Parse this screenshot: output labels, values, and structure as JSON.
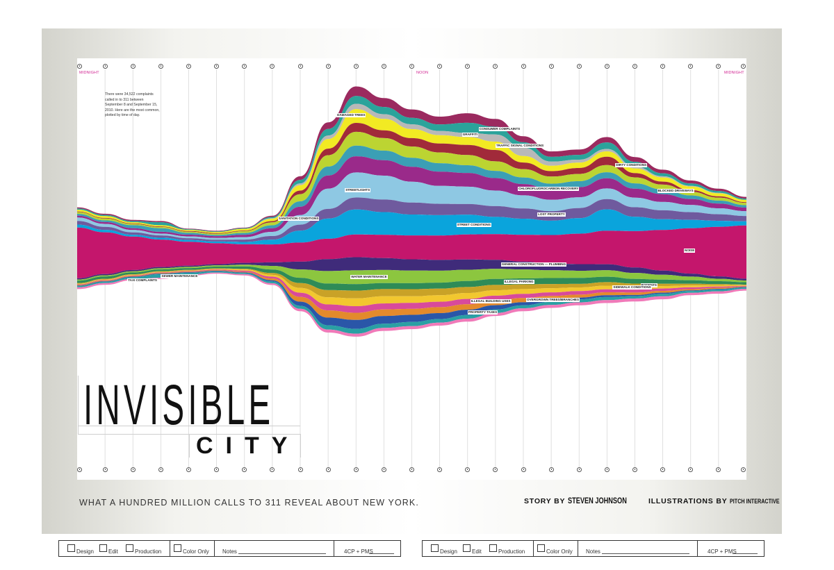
{
  "title": {
    "main": "INVISIBLE",
    "sub": "CITY"
  },
  "tagline": "WHAT A HUNDRED MILLION CALLS TO 311 REVEAL ABOUT NEW YORK.",
  "credits": {
    "story_prefix": "STORY BY",
    "story_name": "STEVEN JOHNSON",
    "illus_prefix": "ILLUSTRATIONS BY",
    "illus_name": "PITCH INTERACTIVE"
  },
  "intro_text": "There were 34,522 complaints called in to 311 between September 8 and September 15, 2010. Here are the most common, plotted by time of day.",
  "time_labels": {
    "start": "MIDNIGHT",
    "noon": "NOON",
    "end": "MIDNIGHT"
  },
  "stamp": {
    "design": "Design",
    "edit": "Edit",
    "production": "Production",
    "color_only": "Color Only",
    "notes": "Notes",
    "color_spec": "4CP + PMS"
  },
  "chart_data": {
    "type": "area",
    "subtype": "streamgraph",
    "x_unit": "hour of day",
    "x": [
      0,
      1,
      2,
      3,
      4,
      5,
      6,
      7,
      8,
      9,
      10,
      11,
      12,
      13,
      14,
      15,
      16,
      17,
      18,
      19,
      20,
      21,
      22,
      23,
      24
    ],
    "series": [
      {
        "name": "DAMAGED TREES",
        "color": "#9b2a5f",
        "values": [
          0.2,
          0.2,
          0.2,
          0.2,
          0.1,
          0.1,
          0.1,
          0.2,
          0.6,
          1.1,
          1.6,
          1.5,
          1.4,
          1.3,
          1.6,
          1.3,
          1.0,
          0.9,
          0.9,
          0.9,
          0.8,
          0.6,
          0.5,
          0.4,
          0.3
        ]
      },
      {
        "name": "CONSUMER COMPLAINTS",
        "color": "#2ba39b",
        "values": [
          0.2,
          0.2,
          0.2,
          0.5,
          0.1,
          0.1,
          0.1,
          0.2,
          0.6,
          1.1,
          1.3,
          1.2,
          1.1,
          1.1,
          1.7,
          1.3,
          0.9,
          0.8,
          0.8,
          1.1,
          0.8,
          0.5,
          0.4,
          0.3,
          0.2
        ]
      },
      {
        "name": "GRAFFITI",
        "color": "#b8b8b8",
        "values": [
          0,
          0,
          0,
          0,
          0,
          0,
          0,
          0.1,
          0.3,
          0.6,
          0.9,
          0.8,
          0.8,
          0.7,
          0.7,
          1.2,
          1.4,
          0.7,
          0.5,
          0.4,
          0.3,
          0.2,
          0.1,
          0.1,
          0
        ]
      },
      {
        "name": "TRAFFIC SIGNAL CONDITIONS",
        "color": "#f2ea23",
        "values": [
          0.3,
          0.3,
          0.2,
          0.2,
          0.2,
          0.2,
          0.3,
          0.4,
          0.9,
          1.6,
          2.3,
          1.9,
          1.5,
          1.4,
          1.3,
          1.4,
          1.1,
          0.9,
          0.9,
          0.9,
          0.8,
          0.7,
          0.6,
          0.5,
          0.4
        ]
      },
      {
        "name": "DIRTY CONDITIONS",
        "color": "#a12a3a",
        "values": [
          0.1,
          0.1,
          0.1,
          0.1,
          0.1,
          0.1,
          0.1,
          0.2,
          0.6,
          1.1,
          1.5,
          1.3,
          1.4,
          1.5,
          1.7,
          1.9,
          1.1,
          0.9,
          1.0,
          1.4,
          0.7,
          0.5,
          0.3,
          0.2,
          0.1
        ]
      },
      {
        "name": "SANITATION CONDITIONS",
        "color": "#bcd432",
        "values": [
          0.3,
          0.3,
          0.2,
          0.2,
          0.2,
          0.2,
          0.3,
          0.5,
          1.2,
          1.9,
          2.3,
          2.1,
          1.9,
          1.8,
          1.7,
          1.6,
          1.4,
          1.2,
          1.2,
          1.2,
          1.0,
          0.8,
          0.6,
          0.5,
          0.4
        ]
      },
      {
        "name": "BLOCKED DRIVEWAYS",
        "color": "#3b9fb5",
        "values": [
          0.3,
          0.3,
          0.5,
          0.6,
          0.3,
          0.2,
          0.3,
          0.5,
          0.9,
          1.5,
          1.8,
          1.6,
          1.5,
          1.4,
          1.3,
          1.2,
          1.1,
          1.0,
          1.0,
          1.0,
          0.9,
          0.8,
          0.6,
          0.5,
          0.4
        ]
      },
      {
        "name": "CHLOROFLUOROCARBON RECOVERY",
        "color": "#9a2a8a",
        "values": [
          0.3,
          0.3,
          0.3,
          0.3,
          0.3,
          0.3,
          0.4,
          0.6,
          1.4,
          2.2,
          2.7,
          2.6,
          2.5,
          2.4,
          2.3,
          2.1,
          1.9,
          1.7,
          1.7,
          1.7,
          1.5,
          1.3,
          1.0,
          0.8,
          0.6
        ]
      },
      {
        "name": "STREETLIGHTS",
        "color": "#8ec8e3",
        "values": [
          0.6,
          0.5,
          0.4,
          0.3,
          0.3,
          0.3,
          0.4,
          0.7,
          1.6,
          3.4,
          4.2,
          4.0,
          3.5,
          3.0,
          2.9,
          2.6,
          2.2,
          1.9,
          1.8,
          1.8,
          1.6,
          1.4,
          1.2,
          1.0,
          0.8
        ]
      },
      {
        "name": "LOST PROPERTY",
        "color": "#6f5a9e",
        "values": [
          0.6,
          0.5,
          0.4,
          0.4,
          0.3,
          0.3,
          0.4,
          0.6,
          1.0,
          1.6,
          2.0,
          2.1,
          2.0,
          1.9,
          1.8,
          1.8,
          1.7,
          1.6,
          1.7,
          1.7,
          1.6,
          1.5,
          1.3,
          1.1,
          0.9
        ]
      },
      {
        "name": "STREET CONDITIONS",
        "color": "#0aa4dc",
        "values": [
          0.5,
          0.4,
          0.3,
          0.3,
          0.3,
          0.3,
          0.4,
          0.8,
          2.0,
          3.4,
          4.2,
          3.8,
          3.5,
          3.4,
          3.3,
          2.9,
          2.7,
          2.4,
          2.6,
          3.6,
          2.4,
          1.8,
          1.4,
          1.0,
          0.7
        ]
      },
      {
        "name": "NOISE",
        "color": "#c4166c",
        "values": [
          8.5,
          7.0,
          5.6,
          4.6,
          4.0,
          3.5,
          3.1,
          3.0,
          3.2,
          3.4,
          3.8,
          3.9,
          4.0,
          4.1,
          4.2,
          4.3,
          4.5,
          4.8,
          5.1,
          5.6,
          6.1,
          6.8,
          7.6,
          8.3,
          8.9
        ]
      },
      {
        "name": "GENERAL CONSTRUCTION — PLUMBING",
        "color": "#3f2b7a",
        "values": [
          0.2,
          0.2,
          0.2,
          0.2,
          0.2,
          0.2,
          0.3,
          0.6,
          1.3,
          2.0,
          2.2,
          2.0,
          1.9,
          1.8,
          1.7,
          1.5,
          1.3,
          1.1,
          1.1,
          1.0,
          0.9,
          0.7,
          0.5,
          0.4,
          0.3
        ]
      },
      {
        "name": "WATER MAINTENANCE",
        "color": "#8cc63f",
        "values": [
          0.2,
          0.2,
          0.2,
          0.2,
          0.2,
          0.2,
          0.3,
          0.6,
          1.4,
          2.1,
          2.3,
          2.2,
          2.1,
          2.0,
          1.9,
          1.7,
          1.5,
          1.3,
          1.2,
          1.1,
          1.0,
          0.8,
          0.6,
          0.4,
          0.3
        ]
      },
      {
        "name": "ILLEGAL PARKING",
        "color": "#2e8b57",
        "values": [
          0.4,
          0.4,
          0.3,
          0.3,
          0.3,
          0.3,
          0.4,
          0.6,
          0.9,
          1.1,
          1.1,
          1.0,
          1.0,
          1.0,
          1.0,
          1.0,
          1.0,
          1.0,
          1.0,
          0.9,
          0.8,
          0.7,
          0.6,
          0.5,
          0.4
        ]
      },
      {
        "name": "RODENTS",
        "color": "#c9a227",
        "values": [
          0.1,
          0.1,
          0.1,
          0.1,
          0.1,
          0.1,
          0.1,
          0.3,
          0.8,
          1.2,
          1.3,
          1.2,
          1.2,
          1.1,
          1.0,
          0.9,
          0.8,
          0.7,
          0.6,
          0.6,
          0.5,
          0.4,
          0.3,
          0.2,
          0.1
        ]
      },
      {
        "name": "SIDEWALK CONDITIONS",
        "color": "#f2c72f",
        "values": [
          0.1,
          0.1,
          0.1,
          0.1,
          0.1,
          0.1,
          0.2,
          0.3,
          0.8,
          1.2,
          1.3,
          1.2,
          1.1,
          1.1,
          1.0,
          0.9,
          0.8,
          0.7,
          0.6,
          0.6,
          0.5,
          0.4,
          0.3,
          0.2,
          0.1
        ]
      },
      {
        "name": "ILLEGAL BUILDING USES",
        "color": "#d84a9b",
        "values": [
          0.1,
          0.1,
          0.1,
          0.1,
          0.1,
          0.1,
          0.2,
          0.3,
          0.7,
          1.0,
          1.1,
          1.0,
          1.0,
          0.9,
          0.9,
          0.8,
          0.7,
          0.6,
          0.6,
          0.5,
          0.5,
          0.4,
          0.3,
          0.2,
          0.1
        ]
      },
      {
        "name": "OVERGROWN TREES/BRANCHES",
        "color": "#e38a2c",
        "values": [
          0.1,
          0.1,
          0.1,
          0.1,
          0.1,
          0.1,
          0.1,
          0.3,
          0.8,
          1.2,
          1.2,
          1.1,
          1.0,
          1.0,
          0.9,
          0.8,
          0.7,
          0.6,
          0.5,
          0.5,
          0.4,
          0.3,
          0.2,
          0.2,
          0.1
        ]
      },
      {
        "name": "PROPERTY TAXES",
        "color": "#2a56a8",
        "values": [
          0.1,
          0.1,
          0.1,
          0.1,
          0.1,
          0.1,
          0.1,
          0.2,
          0.7,
          1.3,
          1.5,
          1.3,
          1.2,
          1.0,
          0.9,
          0.7,
          0.5,
          0.4,
          0.3,
          0.3,
          0.2,
          0.2,
          0.1,
          0.1,
          0.1
        ]
      },
      {
        "name": "SEWER MAINTENANCE",
        "color": "#2aa0a4",
        "values": [
          0.2,
          0.2,
          0.3,
          0.6,
          0.3,
          0.2,
          0.2,
          0.3,
          0.5,
          0.7,
          0.8,
          0.7,
          0.7,
          0.6,
          0.6,
          0.6,
          0.5,
          0.5,
          0.5,
          0.5,
          0.4,
          0.4,
          0.3,
          0.3,
          0.2
        ]
      },
      {
        "name": "TAXI COMPLAINTS",
        "color": "#f07ab9",
        "values": [
          0.3,
          0.3,
          0.2,
          0.2,
          0.2,
          0.2,
          0.2,
          0.3,
          0.4,
          0.5,
          0.5,
          0.5,
          0.5,
          0.5,
          0.5,
          0.5,
          0.5,
          0.5,
          0.5,
          0.5,
          0.5,
          0.5,
          0.4,
          0.4,
          0.3
        ]
      }
    ]
  }
}
